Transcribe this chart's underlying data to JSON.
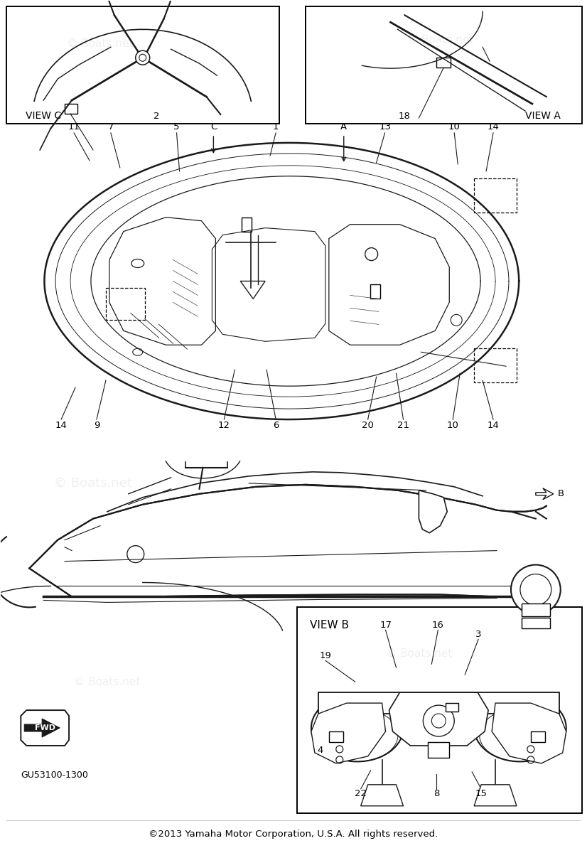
{
  "background_color": "#ffffff",
  "watermark_text": "© Boats.net",
  "copyright_text": "©2013 Yamaha Motor Corporation, U.S.A. All rights reserved.",
  "part_number": "GU53100-1300",
  "view_c_label": "VIEW C",
  "view_a_label": "VIEW A",
  "view_b_label": "VIEW B",
  "fwd_label": "FWD",
  "line_color": "#1a1a1a"
}
